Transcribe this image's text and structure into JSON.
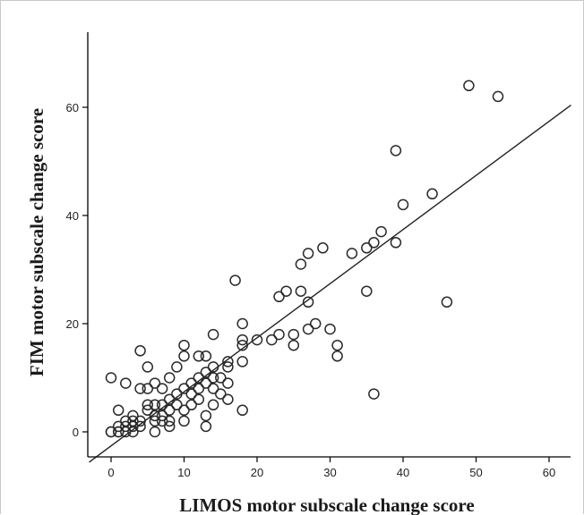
{
  "chart_data": {
    "type": "scatter",
    "title": "",
    "xlabel": "LIMOS motor subscale change score",
    "ylabel": "FIM motor subscale change score",
    "xlim": [
      -3,
      63
    ],
    "ylim": [
      -3,
      74
    ],
    "x_ticks": [
      0,
      10,
      20,
      30,
      40,
      50,
      60
    ],
    "x_tick_labels": [
      "0",
      "10",
      "20",
      "30",
      "40",
      "50",
      "60"
    ],
    "y_ticks": [
      0,
      20,
      40,
      60
    ],
    "y_tick_labels": [
      "0",
      "20",
      "40",
      "60"
    ],
    "grid": false,
    "legend": "none",
    "marker": "open-circle",
    "fit_line": {
      "intercept": -2.6,
      "slope": 1.0,
      "x_range": [
        -3,
        63
      ]
    },
    "points": [
      [
        0,
        0
      ],
      [
        0,
        0
      ],
      [
        0,
        10
      ],
      [
        1,
        0
      ],
      [
        1,
        1
      ],
      [
        1,
        4
      ],
      [
        1,
        0
      ],
      [
        2,
        0
      ],
      [
        2,
        2
      ],
      [
        2,
        1
      ],
      [
        2,
        9
      ],
      [
        3,
        0
      ],
      [
        3,
        1
      ],
      [
        3,
        2
      ],
      [
        3,
        3
      ],
      [
        4,
        1
      ],
      [
        4,
        2
      ],
      [
        4,
        8
      ],
      [
        4,
        15
      ],
      [
        5,
        4
      ],
      [
        5,
        5
      ],
      [
        5,
        8
      ],
      [
        5,
        12
      ],
      [
        6,
        0
      ],
      [
        6,
        2
      ],
      [
        6,
        5
      ],
      [
        6,
        9
      ],
      [
        6,
        3
      ],
      [
        7,
        2
      ],
      [
        7,
        3
      ],
      [
        7,
        5
      ],
      [
        7,
        8
      ],
      [
        8,
        1
      ],
      [
        8,
        2
      ],
      [
        8,
        4
      ],
      [
        8,
        6
      ],
      [
        8,
        10
      ],
      [
        9,
        5
      ],
      [
        9,
        7
      ],
      [
        9,
        12
      ],
      [
        10,
        2
      ],
      [
        10,
        4
      ],
      [
        10,
        8
      ],
      [
        10,
        14
      ],
      [
        10,
        16
      ],
      [
        11,
        5
      ],
      [
        11,
        7
      ],
      [
        11,
        9
      ],
      [
        12,
        6
      ],
      [
        12,
        8
      ],
      [
        12,
        10
      ],
      [
        12,
        14
      ],
      [
        13,
        1
      ],
      [
        13,
        3
      ],
      [
        13,
        9
      ],
      [
        13,
        11
      ],
      [
        13,
        14
      ],
      [
        14,
        5
      ],
      [
        14,
        8
      ],
      [
        14,
        10
      ],
      [
        14,
        12
      ],
      [
        14,
        18
      ],
      [
        15,
        7
      ],
      [
        15,
        10
      ],
      [
        16,
        6
      ],
      [
        16,
        9
      ],
      [
        16,
        12
      ],
      [
        16,
        13
      ],
      [
        17,
        28
      ],
      [
        18,
        4
      ],
      [
        18,
        13
      ],
      [
        18,
        16
      ],
      [
        18,
        17
      ],
      [
        18,
        20
      ],
      [
        20,
        17
      ],
      [
        22,
        17
      ],
      [
        23,
        18
      ],
      [
        23,
        25
      ],
      [
        24,
        26
      ],
      [
        25,
        16
      ],
      [
        25,
        18
      ],
      [
        26,
        26
      ],
      [
        26,
        31
      ],
      [
        27,
        19
      ],
      [
        27,
        24
      ],
      [
        27,
        33
      ],
      [
        28,
        20
      ],
      [
        29,
        34
      ],
      [
        30,
        19
      ],
      [
        31,
        14
      ],
      [
        31,
        16
      ],
      [
        33,
        33
      ],
      [
        35,
        26
      ],
      [
        35,
        34
      ],
      [
        36,
        7
      ],
      [
        36,
        35
      ],
      [
        37,
        37
      ],
      [
        39,
        35
      ],
      [
        39,
        52
      ],
      [
        40,
        42
      ],
      [
        44,
        44
      ],
      [
        46,
        24
      ],
      [
        49,
        64
      ],
      [
        53,
        62
      ]
    ]
  }
}
